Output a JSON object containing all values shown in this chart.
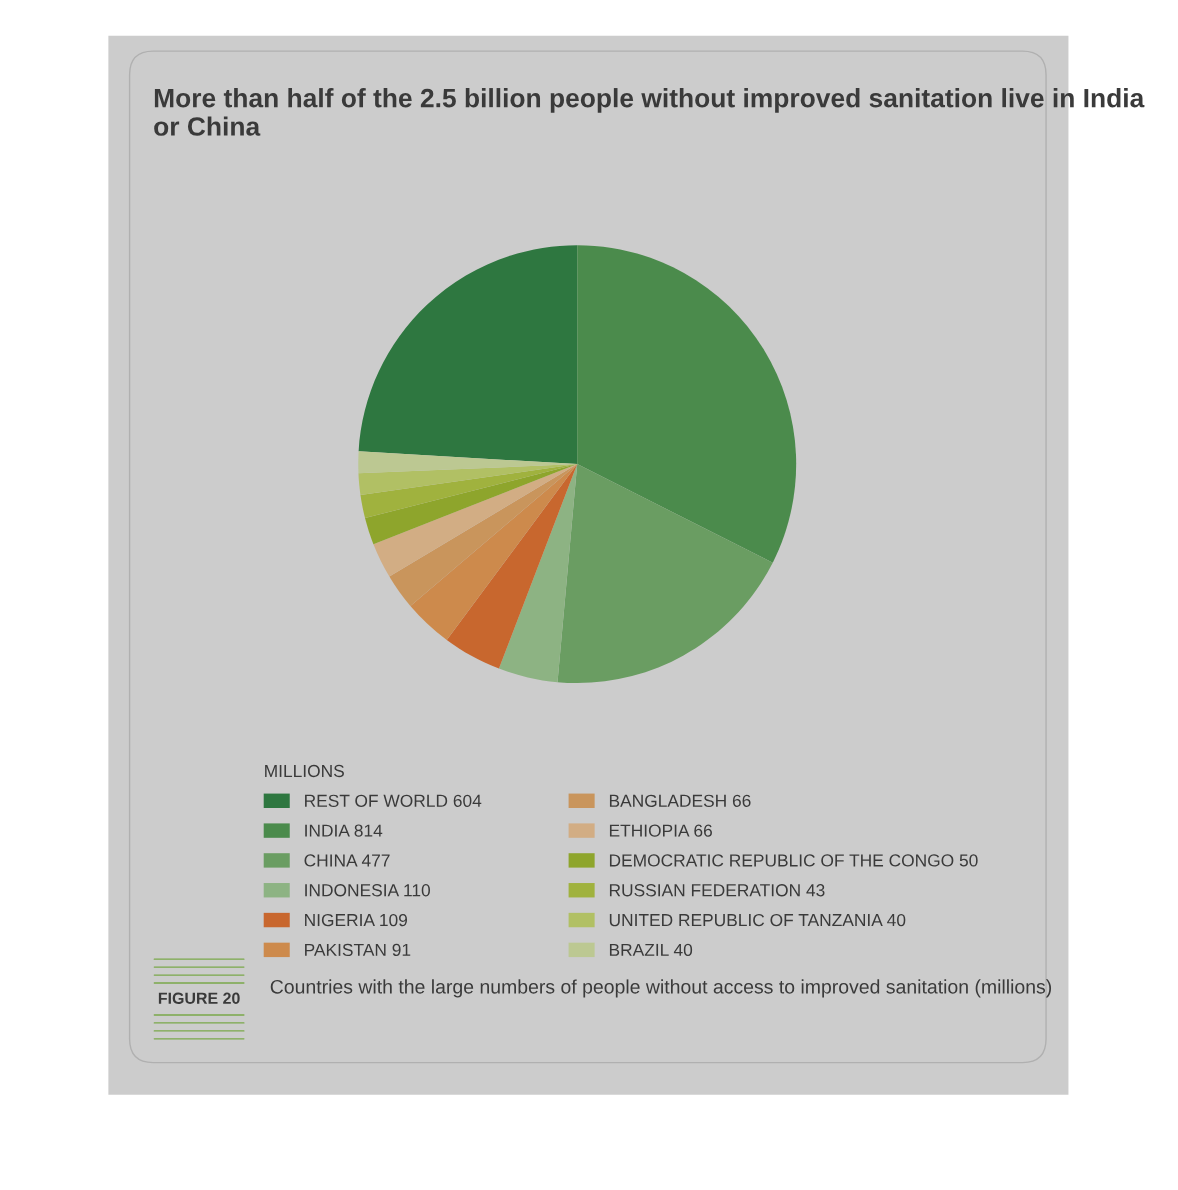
{
  "chart_data": {
    "type": "pie",
    "title": "More than half of the 2.5 billion people without improved sanitation live in India or China",
    "legend_title": "MILLIONS",
    "categories": [
      "REST OF WORLD",
      "INDIA",
      "CHINA",
      "INDONESIA",
      "NIGERIA",
      "PAKISTAN",
      "BANGLADESH",
      "ETHIOPIA",
      "DEMOCRATIC REPUBLIC OF THE CONGO",
      "RUSSIAN FEDERATION",
      "UNITED REPUBLIC OF TANZANIA",
      "BRAZIL"
    ],
    "values": [
      604,
      814,
      477,
      110,
      109,
      91,
      66,
      66,
      50,
      43,
      40,
      40
    ],
    "colors": [
      "#2e7740",
      "#4b8b4c",
      "#6a9d62",
      "#8db383",
      "#c8672e",
      "#cd8a4c",
      "#c9955c",
      "#d2ad84",
      "#8ea52c",
      "#a0b23e",
      "#b1c064",
      "#bcc892"
    ],
    "value_labels": [
      "604",
      "814",
      "477",
      "110",
      "109",
      "91",
      "66",
      "66",
      "50",
      "43",
      "40",
      "40"
    ],
    "legend": "bottom",
    "annotations": [
      "FIGURE 20",
      "Countries with the large numbers of people without access to improved sanitation (millions)"
    ]
  }
}
